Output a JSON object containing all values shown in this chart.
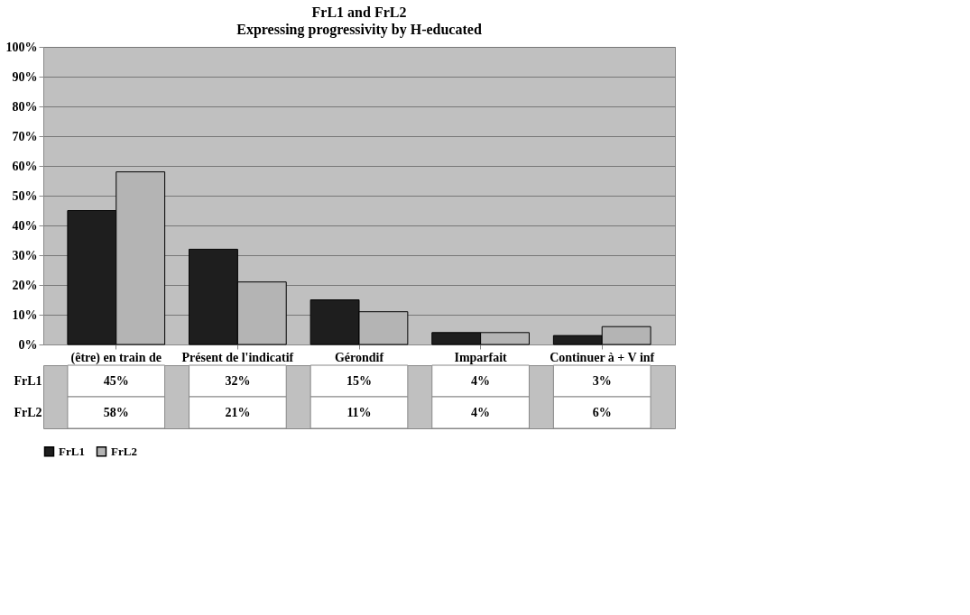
{
  "chart_data": {
    "type": "bar",
    "title": "FrL1 and FrL2",
    "subtitle": "Expressing progressivity by H-educated",
    "categories": [
      "(être) en train de",
      "Présent de l'indicatif",
      "Gérondif",
      "Imparfait",
      "Continuer à + V inf"
    ],
    "series": [
      {
        "name": "FrL1",
        "color": "#1e1e1e",
        "values": [
          45,
          32,
          15,
          4,
          3
        ],
        "value_labels": [
          "45%",
          "32%",
          "15%",
          "4%",
          "3%"
        ]
      },
      {
        "name": "FrL2",
        "color": "#b4b4b4",
        "values": [
          58,
          21,
          11,
          4,
          6
        ],
        "value_labels": [
          "58%",
          "21%",
          "11%",
          "4%",
          "6%"
        ]
      }
    ],
    "ylim": [
      0,
      100
    ],
    "yticks": [
      {
        "value": 0,
        "label": "0%"
      },
      {
        "value": 10,
        "label": "10%"
      },
      {
        "value": 20,
        "label": "20%"
      },
      {
        "value": 30,
        "label": "30%"
      },
      {
        "value": 40,
        "label": "40%"
      },
      {
        "value": 50,
        "label": "50%"
      },
      {
        "value": 60,
        "label": "60%"
      },
      {
        "value": 70,
        "label": "70%"
      },
      {
        "value": 80,
        "label": "80%"
      },
      {
        "value": 90,
        "label": "90%"
      },
      {
        "value": 100,
        "label": "100%"
      }
    ],
    "grid": "y",
    "legend": "bottom",
    "data_labels": true
  }
}
